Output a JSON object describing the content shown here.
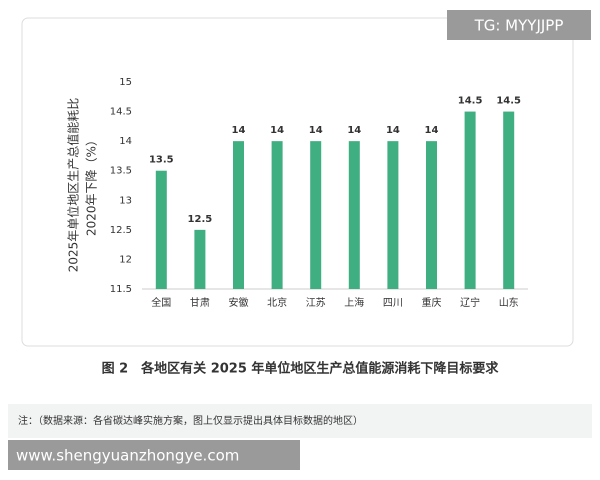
{
  "chart_data": {
    "type": "bar",
    "ylabel": [
      "2025年单位地区生产总值能耗比",
      "2020年下降（%）"
    ],
    "categories": [
      "全国",
      "甘肃",
      "安徽",
      "北京",
      "江苏",
      "上海",
      "四川",
      "重庆",
      "辽宁",
      "山东"
    ],
    "values": [
      13.5,
      12.5,
      14,
      14,
      14,
      14,
      14,
      14,
      14.5,
      14.5
    ],
    "color": "#3fae80",
    "ylim": [
      11.5,
      15
    ],
    "yticks": [
      11.5,
      12,
      12.5,
      13,
      13.5,
      14,
      14.5,
      15
    ],
    "grid": false
  },
  "caption": "图 2　各地区有关 2025 年单位地区生产总值能源消耗下降目标要求",
  "note": "注：（数据来源：各省碳达峰实施方案，图上仅显示提出具体目标数据的地区）",
  "watermarks": [
    "TG: MYYJJPP",
    "www.shengyuanzhongye.com"
  ]
}
